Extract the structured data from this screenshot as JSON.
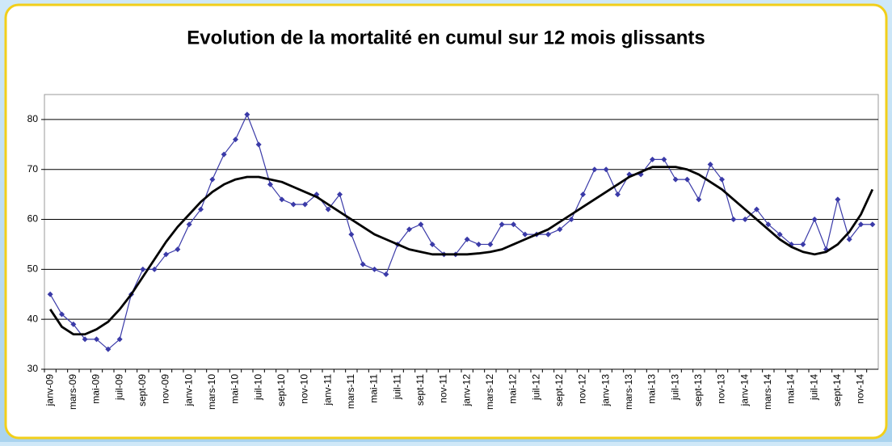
{
  "chart_data": {
    "type": "line",
    "title": "Evolution de la mortalité en cumul sur 12 mois glissants",
    "categories": [
      "janv-09",
      null,
      "mars-09",
      null,
      "mai-09",
      null,
      "juil-09",
      null,
      "sept-09",
      null,
      "nov-09",
      null,
      "janv-10",
      null,
      "mars-10",
      null,
      "mai-10",
      null,
      "juil-10",
      null,
      "sept-10",
      null,
      "nov-10",
      null,
      "janv-11",
      null,
      "mars-11",
      null,
      "mai-11",
      null,
      "juil-11",
      null,
      "sept-11",
      null,
      "nov-11",
      null,
      "janv-12",
      null,
      "mars-12",
      null,
      "mai-12",
      null,
      "juil-12",
      null,
      "sept-12",
      null,
      "nov-12",
      null,
      "janv-13",
      null,
      "mars-13",
      null,
      "mai-13",
      null,
      "juil-13",
      null,
      "sept-13",
      null,
      "nov-13",
      null,
      "janv-14",
      null,
      "mars-14",
      null,
      "mai-14",
      null,
      "juil-14",
      null,
      "sept-14",
      null,
      "nov-14",
      null
    ],
    "series": [
      {
        "color": "#3a3aa8",
        "markers": true,
        "values": [
          45,
          41,
          39,
          36,
          36,
          34,
          36,
          45,
          50,
          50,
          53,
          54,
          59,
          62,
          68,
          73,
          76,
          81,
          75,
          67,
          64,
          63,
          63,
          65,
          62,
          65,
          57,
          51,
          50,
          49,
          55,
          58,
          59,
          55,
          53,
          53,
          56,
          55,
          55,
          59,
          59,
          57,
          57,
          57,
          58,
          60,
          65,
          70,
          70,
          65,
          69,
          69,
          72,
          72,
          68,
          68,
          64,
          71,
          68,
          60,
          60,
          62,
          59,
          57,
          55,
          55,
          60,
          54,
          64,
          56,
          59,
          59
        ]
      },
      {
        "color": "#000000",
        "markers": false,
        "values": [
          42,
          38.5,
          37,
          37,
          38,
          39.5,
          42,
          45,
          48.5,
          52,
          55.5,
          58.5,
          61,
          63.5,
          65.5,
          67,
          68,
          68.5,
          68.5,
          68,
          67.5,
          66.5,
          65.5,
          64.5,
          63,
          61.5,
          60,
          58.5,
          57,
          56,
          55,
          54,
          53.5,
          53,
          53,
          53,
          53,
          53.2,
          53.5,
          54,
          55,
          56,
          57,
          58,
          59.5,
          61,
          62.5,
          64,
          65.5,
          67,
          68.5,
          69.5,
          70.5,
          70.5,
          70.5,
          70,
          69,
          67.5,
          66,
          64,
          62,
          60,
          58,
          56,
          54.5,
          53.5,
          53,
          53.5,
          55,
          57.5,
          61,
          66
        ]
      }
    ],
    "ylim": [
      30,
      85
    ],
    "yticks": [
      30,
      40,
      50,
      60,
      70,
      80
    ],
    "grid": true
  }
}
